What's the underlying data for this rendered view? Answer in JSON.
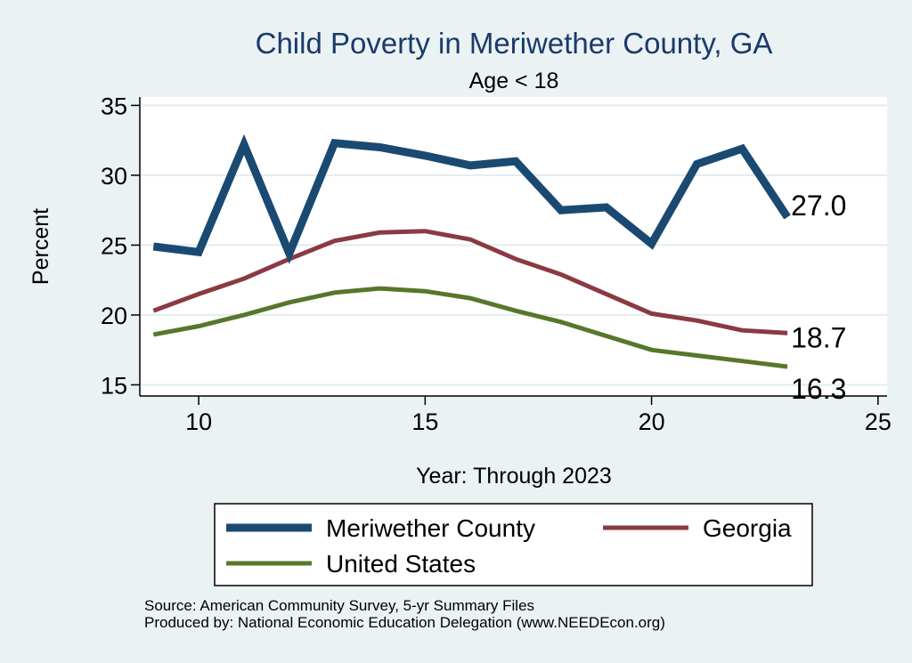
{
  "chart_data": {
    "type": "line",
    "title": "Child Poverty in Meriwether County, GA",
    "subtitle": "Age < 18",
    "xlabel": "Year: Through 2023",
    "ylabel": "Percent",
    "xlim": [
      8.7,
      25.2
    ],
    "ylim": [
      14.2,
      35.6
    ],
    "xticks": [
      10,
      15,
      20,
      25
    ],
    "yticks": [
      15,
      20,
      25,
      30,
      35
    ],
    "grid": true,
    "legend_position": "bottom",
    "x": [
      9,
      10,
      11,
      12,
      13,
      14,
      15,
      16,
      17,
      18,
      19,
      20,
      21,
      22,
      23
    ],
    "series": [
      {
        "name": "Meriwether County",
        "color": "#1a4a72",
        "width": 9,
        "values": [
          24.9,
          24.5,
          32.2,
          24.4,
          32.3,
          32.0,
          31.4,
          30.7,
          31.0,
          27.5,
          27.7,
          25.1,
          30.8,
          31.9,
          27.0
        ],
        "end_label": "27.0"
      },
      {
        "name": "Georgia",
        "color": "#8b3a42",
        "width": 5,
        "values": [
          20.3,
          21.5,
          22.6,
          24.0,
          25.3,
          25.9,
          26.0,
          25.4,
          24.0,
          22.9,
          21.5,
          20.1,
          19.6,
          18.9,
          18.7
        ],
        "end_label": "18.7"
      },
      {
        "name": "United States",
        "color": "#57772b",
        "width": 5,
        "values": [
          18.6,
          19.2,
          20.0,
          20.9,
          21.6,
          21.9,
          21.7,
          21.2,
          20.3,
          19.5,
          18.5,
          17.5,
          17.1,
          16.7,
          16.3
        ],
        "end_label": "16.3"
      }
    ]
  },
  "footer": {
    "source": "Source: American Community Survey, 5-yr Summary Files",
    "produced_by": "Produced by: National Economic Education Delegation (www.NEEDEcon.org)"
  }
}
